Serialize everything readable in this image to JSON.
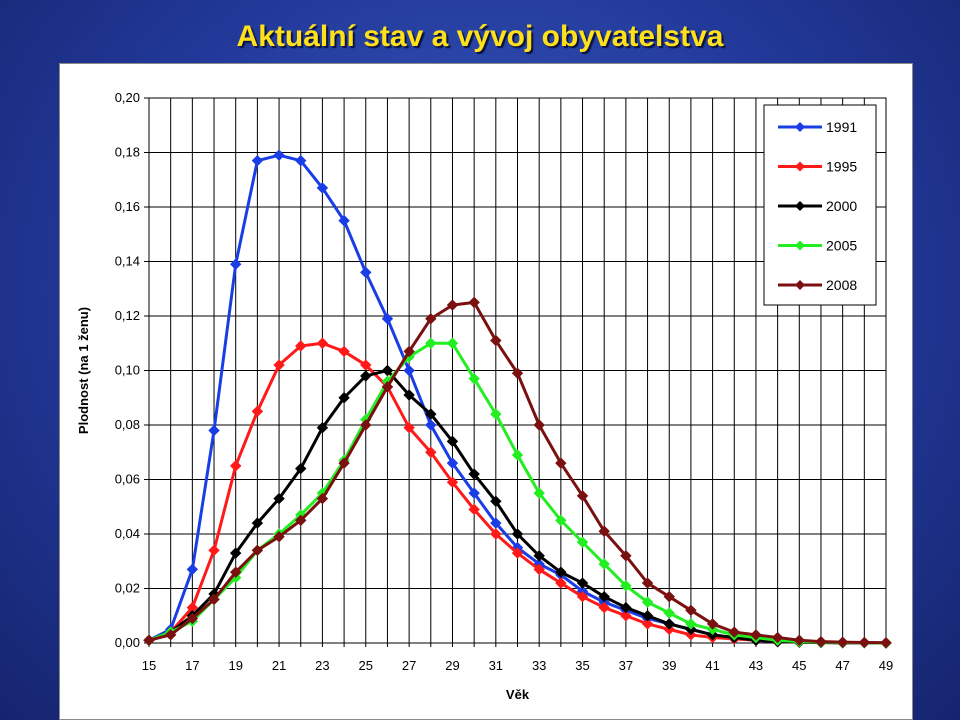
{
  "slide": {
    "title": "Aktuální stav a vývoj obyvatelstva"
  },
  "chart_data": {
    "type": "line",
    "title": "",
    "xlabel": "Věk",
    "ylabel": "Plodnost (na 1 ženu)",
    "xlim": [
      15,
      49
    ],
    "ylim": [
      0,
      0.2
    ],
    "x_ticks": [
      "15",
      "17",
      "19",
      "21",
      "23",
      "25",
      "27",
      "29",
      "31",
      "33",
      "35",
      "37",
      "39",
      "41",
      "43",
      "45",
      "47",
      "49"
    ],
    "y_ticks": [
      "0,00",
      "0,02",
      "0,04",
      "0,06",
      "0,08",
      "0,10",
      "0,12",
      "0,14",
      "0,16",
      "0,18",
      "0,20"
    ],
    "grid": true,
    "legend_position": "top-right",
    "x": [
      15,
      16,
      17,
      18,
      19,
      20,
      21,
      22,
      23,
      24,
      25,
      26,
      27,
      28,
      29,
      30,
      31,
      32,
      33,
      34,
      35,
      36,
      37,
      38,
      39,
      40,
      41,
      42,
      43,
      44,
      45,
      46,
      47,
      48,
      49
    ],
    "series": [
      {
        "name": "1991",
        "color": "#1a3ee6",
        "marker": "diamond",
        "values": [
          0.001,
          0.005,
          0.027,
          0.078,
          0.139,
          0.177,
          0.179,
          0.177,
          0.167,
          0.155,
          0.136,
          0.119,
          0.1,
          0.08,
          0.066,
          0.055,
          0.044,
          0.035,
          0.029,
          0.025,
          0.019,
          0.015,
          0.012,
          0.009,
          0.007,
          0.005,
          0.003,
          0.002,
          0.001,
          0.0005,
          0.0003,
          0.0002,
          0.0001,
          0.0001,
          0.0
        ]
      },
      {
        "name": "1995",
        "color": "#ff1a1a",
        "marker": "diamond",
        "values": [
          0.001,
          0.004,
          0.013,
          0.034,
          0.065,
          0.085,
          0.102,
          0.109,
          0.11,
          0.107,
          0.102,
          0.094,
          0.079,
          0.07,
          0.059,
          0.049,
          0.04,
          0.033,
          0.027,
          0.022,
          0.017,
          0.013,
          0.01,
          0.007,
          0.005,
          0.003,
          0.002,
          0.0015,
          0.001,
          0.0005,
          0.0003,
          0.0002,
          0.0001,
          0.0001,
          0.0
        ]
      },
      {
        "name": "2000",
        "color": "#000000",
        "marker": "diamond",
        "values": [
          0.001,
          0.004,
          0.01,
          0.018,
          0.033,
          0.044,
          0.053,
          0.064,
          0.079,
          0.09,
          0.098,
          0.1,
          0.091,
          0.084,
          0.074,
          0.062,
          0.052,
          0.04,
          0.032,
          0.026,
          0.022,
          0.017,
          0.013,
          0.01,
          0.007,
          0.005,
          0.003,
          0.002,
          0.001,
          0.0005,
          0.0003,
          0.0002,
          0.0001,
          0.0001,
          0.0
        ]
      },
      {
        "name": "2005",
        "color": "#22ee22",
        "marker": "diamond",
        "values": [
          0.001,
          0.004,
          0.008,
          0.016,
          0.024,
          0.034,
          0.04,
          0.047,
          0.055,
          0.067,
          0.082,
          0.096,
          0.105,
          0.11,
          0.11,
          0.097,
          0.084,
          0.069,
          0.055,
          0.045,
          0.037,
          0.029,
          0.021,
          0.015,
          0.011,
          0.007,
          0.005,
          0.003,
          0.002,
          0.001,
          0.0005,
          0.0003,
          0.0002,
          0.0001,
          0.0
        ]
      },
      {
        "name": "2008",
        "color": "#7a1010",
        "marker": "diamond",
        "values": [
          0.001,
          0.003,
          0.009,
          0.016,
          0.026,
          0.034,
          0.039,
          0.045,
          0.053,
          0.066,
          0.08,
          0.094,
          0.107,
          0.119,
          0.124,
          0.125,
          0.111,
          0.099,
          0.08,
          0.066,
          0.054,
          0.041,
          0.032,
          0.022,
          0.017,
          0.012,
          0.007,
          0.004,
          0.003,
          0.002,
          0.001,
          0.0005,
          0.0003,
          0.0002,
          0.0001
        ]
      }
    ]
  }
}
